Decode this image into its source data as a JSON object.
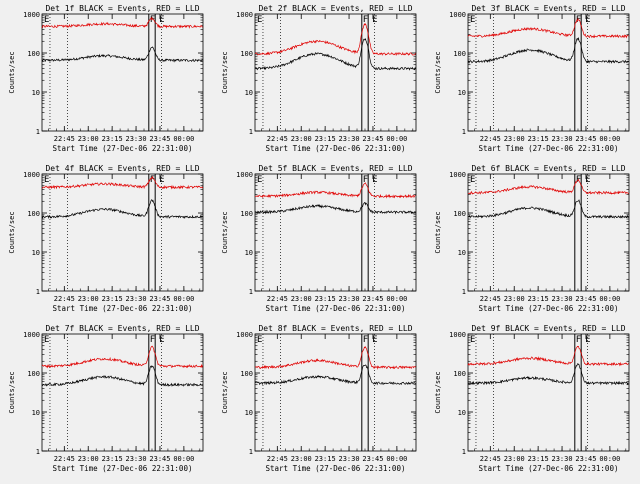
{
  "figure": {
    "background": "#f0f0f0",
    "event_color": "#000000",
    "lld_color": "#e00000"
  },
  "markers": {
    "f_label": "F",
    "e_label": "E"
  },
  "axes": {
    "ylabel": "Counts/sec",
    "xlabel": "Start Time (27-Dec-06 22:31:00)",
    "yscale": "log",
    "ylim": [
      1,
      1000
    ],
    "y_ticks": [
      1,
      10,
      100,
      1000
    ],
    "y_tick_labels": [
      "1",
      "10",
      "100",
      "1000"
    ],
    "xlim": [
      "22:31",
      "00:12"
    ],
    "x_ticks": [
      "22:45",
      "23:00",
      "23:15",
      "23:30",
      "23:45",
      "00:00"
    ],
    "f_time": "23:38",
    "e_time": "23:42",
    "dotted_lines": [
      "22:36",
      "22:47",
      "23:46"
    ]
  },
  "chart_data": [
    {
      "type": "line",
      "title": "Det 1f BLACK = Events, RED = LLD",
      "series": [
        {
          "values": {
            "base": 65,
            "hump": 85,
            "peak": 140
          }
        },
        {
          "values": {
            "base": 480,
            "hump": 560,
            "peak": 780
          }
        }
      ]
    },
    {
      "type": "line",
      "title": "Det 2f BLACK = Events, RED = LLD",
      "series": [
        {
          "values": {
            "base": 40,
            "hump": 95,
            "peak": 230
          }
        },
        {
          "values": {
            "base": 95,
            "hump": 200,
            "peak": 540
          }
        }
      ]
    },
    {
      "type": "line",
      "title": "Det 3f BLACK = Events, RED = LLD",
      "series": [
        {
          "values": {
            "base": 60,
            "hump": 120,
            "peak": 230
          }
        },
        {
          "values": {
            "base": 270,
            "hump": 420,
            "peak": 720
          }
        }
      ]
    },
    {
      "type": "line",
      "title": "Det 4f BLACK = Events, RED = LLD",
      "series": [
        {
          "values": {
            "base": 80,
            "hump": 125,
            "peak": 210
          }
        },
        {
          "values": {
            "base": 460,
            "hump": 560,
            "peak": 800
          }
        }
      ]
    },
    {
      "type": "line",
      "title": "Det 5f BLACK = Events, RED = LLD",
      "series": [
        {
          "values": {
            "base": 105,
            "hump": 150,
            "peak": 175
          }
        },
        {
          "values": {
            "base": 270,
            "hump": 340,
            "peak": 560
          }
        }
      ]
    },
    {
      "type": "line",
      "title": "Det 6f BLACK = Events, RED = LLD",
      "series": [
        {
          "values": {
            "base": 80,
            "hump": 135,
            "peak": 210
          }
        },
        {
          "values": {
            "base": 330,
            "hump": 470,
            "peak": 700
          }
        }
      ]
    },
    {
      "type": "line",
      "title": "Det 7f BLACK = Events, RED = LLD",
      "series": [
        {
          "values": {
            "base": 50,
            "hump": 80,
            "peak": 150
          }
        },
        {
          "values": {
            "base": 150,
            "hump": 230,
            "peak": 460
          }
        }
      ]
    },
    {
      "type": "line",
      "title": "Det 8f BLACK = Events, RED = LLD",
      "series": [
        {
          "values": {
            "base": 55,
            "hump": 80,
            "peak": 165
          }
        },
        {
          "values": {
            "base": 140,
            "hump": 210,
            "peak": 450
          }
        }
      ]
    },
    {
      "type": "line",
      "title": "Det 9f BLACK = Events, RED = LLD",
      "series": [
        {
          "values": {
            "base": 55,
            "hump": 75,
            "peak": 170
          }
        },
        {
          "values": {
            "base": 170,
            "hump": 240,
            "peak": 470
          }
        }
      ]
    }
  ]
}
